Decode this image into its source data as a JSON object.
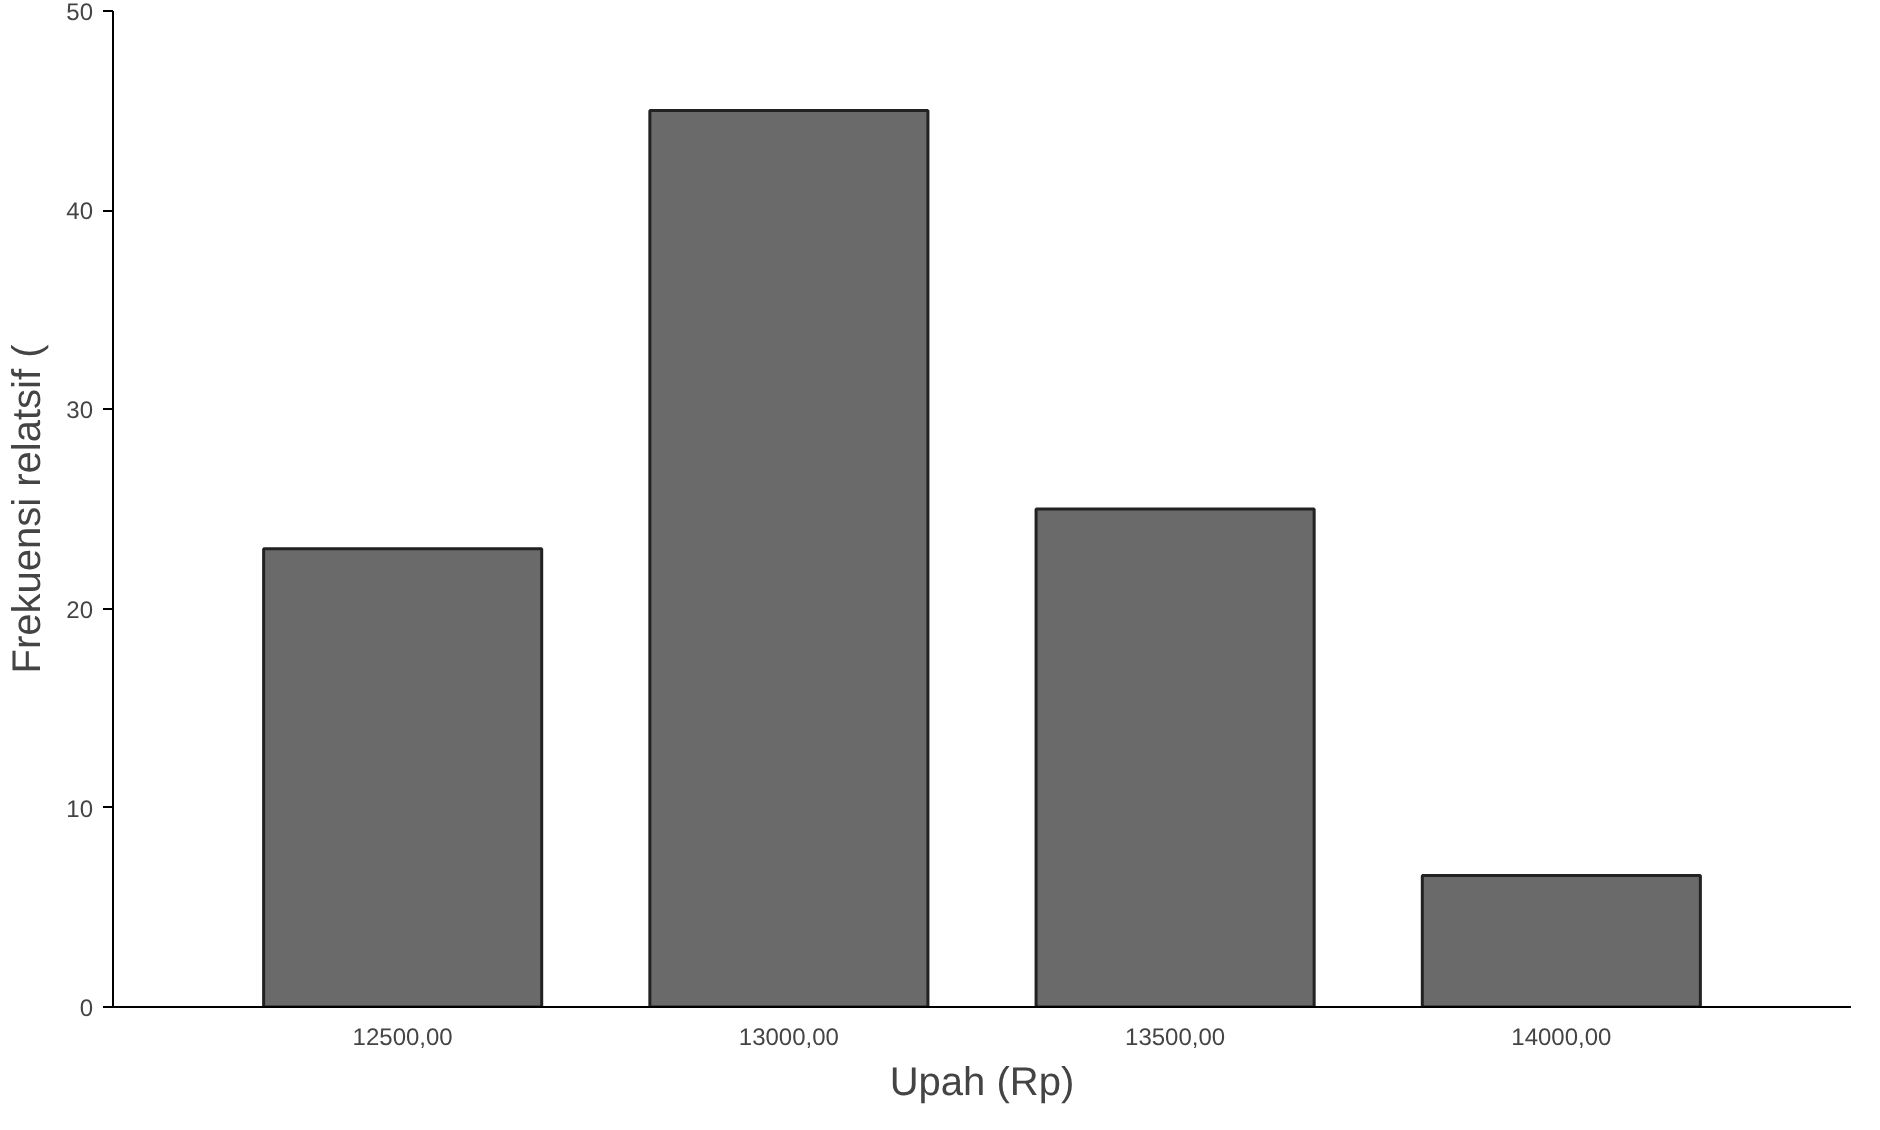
{
  "chart_data": {
    "type": "bar",
    "xlabel": "Upah (Rp)",
    "ylabel": "Frekuensi relatsif (",
    "categories": [
      "12500,00",
      "13000,00",
      "13500,00",
      "14000,00"
    ],
    "values": [
      23,
      45,
      25,
      6.6
    ],
    "color": "#6a6a6a",
    "ylim": [
      0,
      50
    ],
    "yticks": [
      0,
      10,
      20,
      30,
      40,
      50
    ],
    "grid": false
  }
}
